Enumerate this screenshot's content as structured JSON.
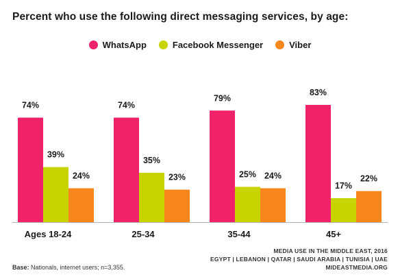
{
  "title": "Percent who use the following direct messaging services, by age:",
  "colors": {
    "whatsapp": "#f0236a",
    "messenger": "#c8d400",
    "viber": "#f7861d",
    "baseline": "#b0b0b0"
  },
  "chart_data": {
    "type": "bar",
    "categories": [
      "Ages 18-24",
      "25-34",
      "35-44",
      "45+"
    ],
    "series": [
      {
        "name": "WhatsApp",
        "values": [
          74,
          74,
          79,
          83
        ],
        "labels": [
          "74%",
          "74%",
          "79%",
          "83%"
        ]
      },
      {
        "name": "Facebook Messenger",
        "values": [
          39,
          35,
          25,
          17
        ],
        "labels": [
          "39%",
          "35%",
          "25%",
          "17%"
        ]
      },
      {
        "name": "Viber",
        "values": [
          24,
          23,
          24,
          22
        ],
        "labels": [
          "24%",
          "23%",
          "24%",
          "22%"
        ]
      }
    ],
    "ylim": [
      0,
      100
    ],
    "legend_position": "top-center",
    "grid": false
  },
  "footer": {
    "base_label": "Base:",
    "base_text": "Nationals, internet users; n=3,355.",
    "source_line1": "MEDIA USE IN THE MIDDLE EAST, 2016",
    "source_line2": "EGYPT | LEBANON | QATAR | SAUDI ARABIA | TUNISIA | UAE",
    "source_line3": "MIDEASTMEDIA.ORG"
  }
}
